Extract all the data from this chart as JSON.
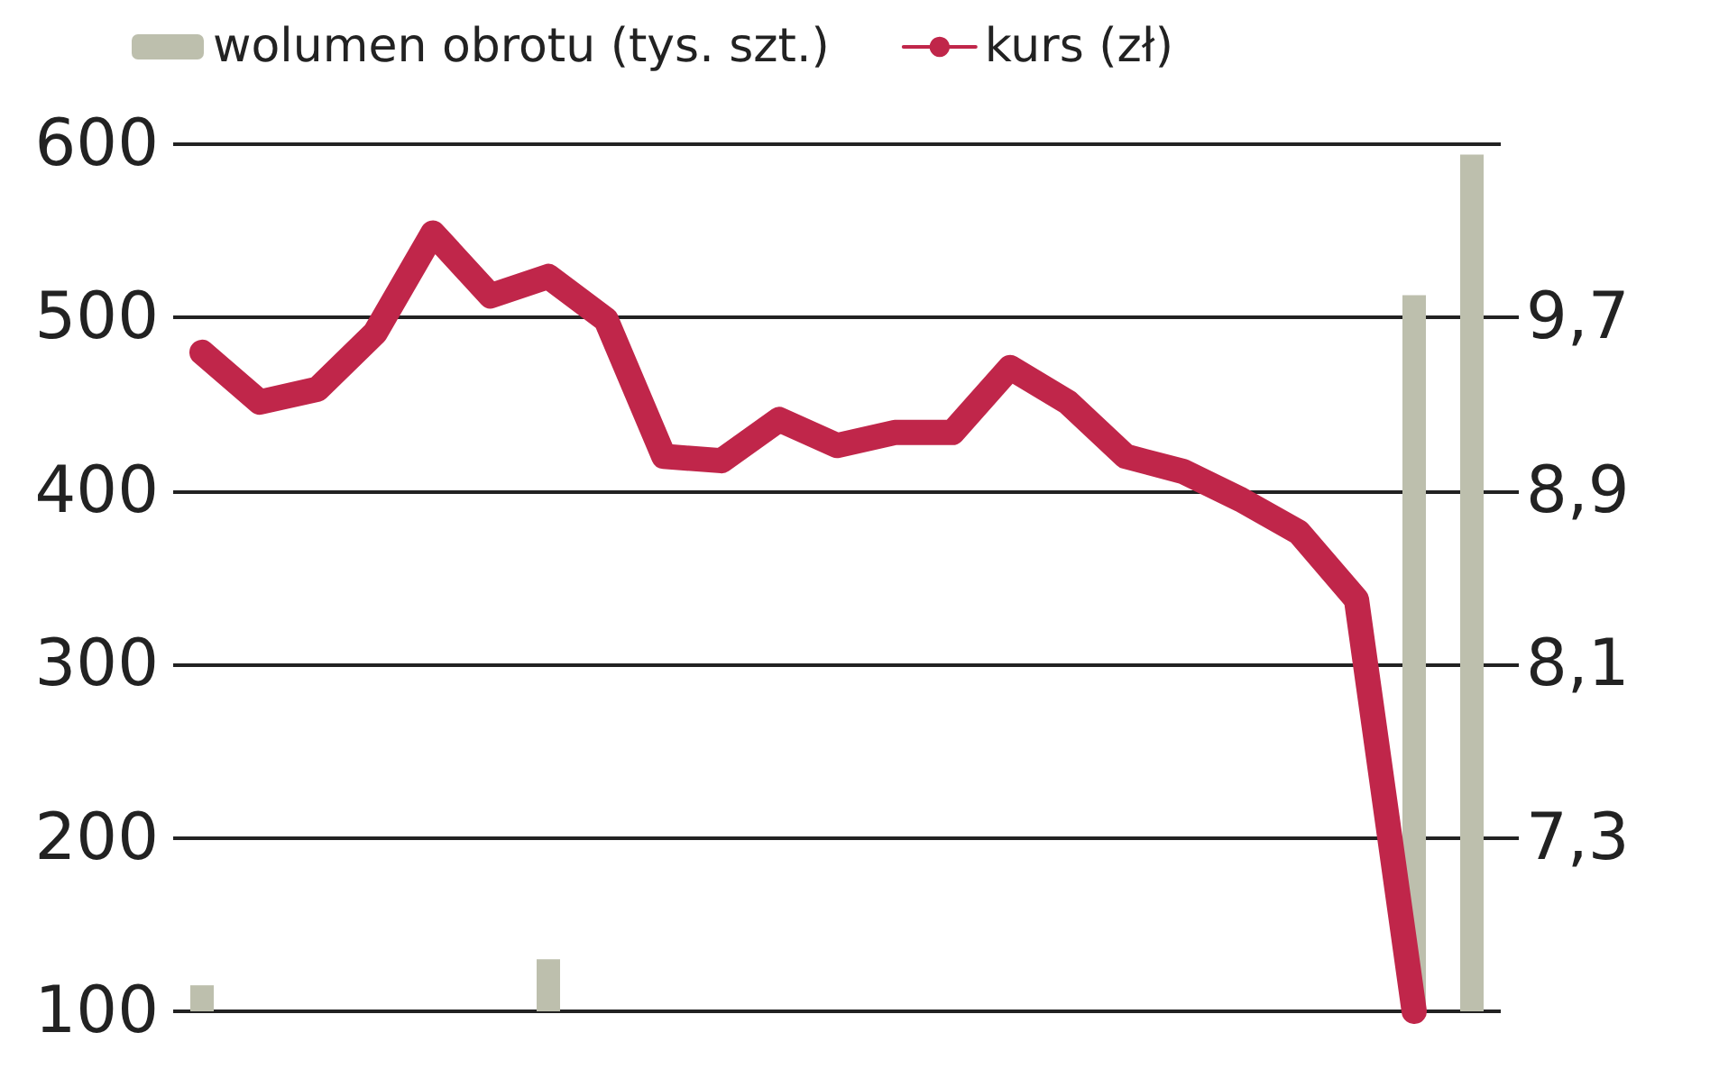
{
  "chart_data": {
    "type": "bar",
    "categories": [
      null,
      null,
      null,
      null,
      null,
      null,
      null,
      null,
      null,
      null,
      null,
      null,
      null,
      null,
      null,
      null,
      null,
      null,
      null,
      null,
      null,
      null,
      null
    ],
    "series": [
      {
        "name": "wolumen obrotu (tys. szt.)",
        "color": "#bdbfad",
        "values": [
          115,
          null,
          null,
          null,
          null,
          null,
          130,
          null,
          null,
          null,
          null,
          null,
          null,
          null,
          null,
          null,
          null,
          null,
          null,
          null,
          null,
          513,
          594
        ]
      },
      {
        "name": "kurs (zł)",
        "type": "line",
        "axis": "y2",
        "color": "#c0264a",
        "values": [
          9.54,
          9.31,
          9.37,
          9.63,
          10.09,
          9.8,
          9.89,
          9.69,
          9.06,
          9.04,
          9.23,
          9.11,
          9.17,
          9.17,
          9.47,
          9.31,
          9.06,
          8.99,
          8.86,
          8.71,
          8.4,
          6.5,
          null
        ]
      }
    ],
    "ylim": [
      100,
      600
    ],
    "yticks": [
      100,
      200,
      300,
      400,
      500,
      600
    ],
    "y2lim": [
      6.5,
      10.5
    ],
    "y2ticks": [
      {
        "value": 7.3,
        "label": "7,3"
      },
      {
        "value": 8.1,
        "label": "8,1"
      },
      {
        "value": 8.9,
        "label": "8,9"
      },
      {
        "value": 9.7,
        "label": "9,7"
      }
    ],
    "grid": "y",
    "legend": "top left",
    "line_style": "solid"
  }
}
